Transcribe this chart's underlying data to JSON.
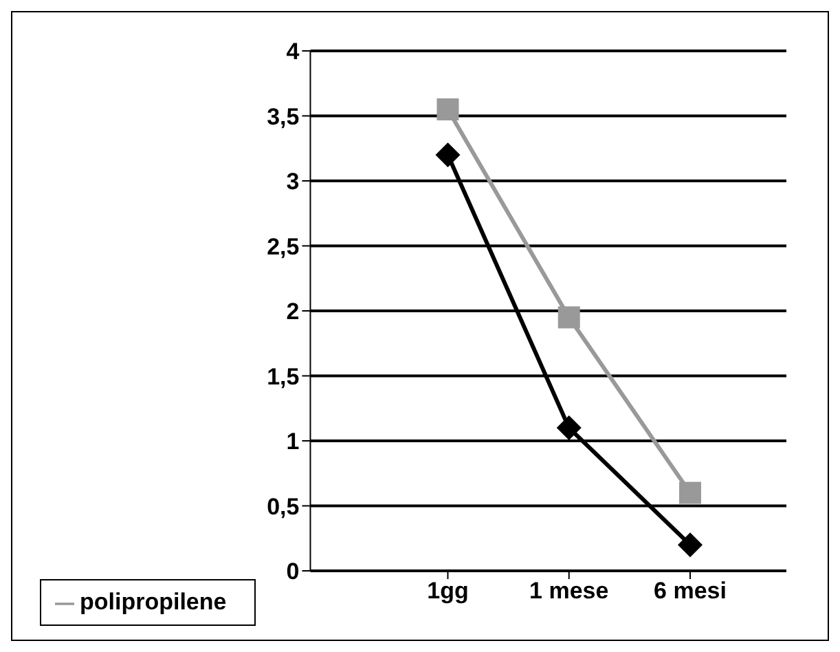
{
  "chart_data": {
    "type": "line",
    "categories": [
      "1gg",
      "1 mese",
      "6 mesi"
    ],
    "series": [
      {
        "color": "#000000",
        "marker": "diamond",
        "values": [
          3.2,
          1.1,
          0.2
        ]
      },
      {
        "name": "polipropilene",
        "color": "#999999",
        "marker": "square",
        "values": [
          3.55,
          1.95,
          0.6
        ]
      }
    ],
    "ylim": [
      0,
      4
    ],
    "yticks": [
      0,
      {
        "value": 0.5,
        "label": "0,5"
      },
      1,
      {
        "value": 1.5,
        "label": "1,5"
      },
      2,
      {
        "value": 2.5,
        "label": "2,5"
      },
      3,
      {
        "value": 3.5,
        "label": "3,5"
      },
      4
    ],
    "grid": "y",
    "legend": "bottom left",
    "line_style": "solid"
  }
}
